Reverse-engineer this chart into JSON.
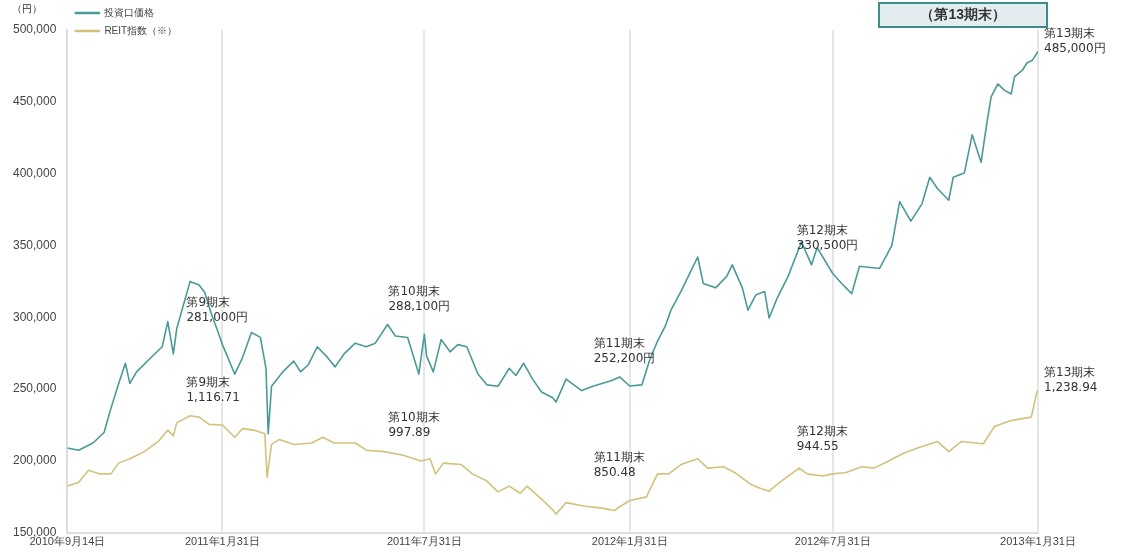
{
  "chart_data": {
    "type": "line",
    "ylabel": "（円）",
    "xlim": [
      "2010-09-14",
      "2013-01-31"
    ],
    "xticks": [
      {
        "value": "2010-09-14",
        "label": "2010年9月14日"
      },
      {
        "value": "2011-01-31",
        "label": "2011年1月31日"
      },
      {
        "value": "2011-07-31",
        "label": "2011年7月31日"
      },
      {
        "value": "2012-01-31",
        "label": "2012年1月31日"
      },
      {
        "value": "2012-07-31",
        "label": "2012年7月31日"
      },
      {
        "value": "2013-01-31",
        "label": "2013年1月31日"
      }
    ],
    "ylim": [
      150000,
      500000
    ],
    "yticks": [
      {
        "value": 150000,
        "label": "150,000"
      },
      {
        "value": 200000,
        "label": "200,000"
      },
      {
        "value": 250000,
        "label": "250,000"
      },
      {
        "value": 300000,
        "label": "300,000"
      },
      {
        "value": 350000,
        "label": "350,000"
      },
      {
        "value": 400000,
        "label": "400,000"
      },
      {
        "value": 450000,
        "label": "450,000"
      },
      {
        "value": 500000,
        "label": "500,000"
      }
    ],
    "grid": "x",
    "legend": "top left",
    "marker": "none",
    "line_style": "solid",
    "series": [
      {
        "name": "投資口価格",
        "color": "#4a9a98",
        "x": [
          "2010-09-14",
          "2010-09-24",
          "2010-10-07",
          "2010-10-17",
          "2010-10-22",
          "2010-10-30",
          "2010-11-05",
          "2010-11-09",
          "2010-11-15",
          "2010-11-28",
          "2010-12-08",
          "2010-12-13",
          "2010-12-18",
          "2010-12-21",
          "2011-01-02",
          "2011-01-10",
          "2011-01-15",
          "2011-01-21",
          "2011-01-26",
          "2011-01-31",
          "2011-02-11",
          "2011-02-18",
          "2011-02-26",
          "2011-03-06",
          "2011-03-11",
          "2011-03-13",
          "2011-03-16",
          "2011-03-26",
          "2011-04-05",
          "2011-04-11",
          "2011-04-18",
          "2011-04-26",
          "2011-05-04",
          "2011-05-12",
          "2011-05-20",
          "2011-05-30",
          "2011-06-09",
          "2011-06-17",
          "2011-06-28",
          "2011-07-05",
          "2011-07-16",
          "2011-07-26",
          "2011-07-31",
          "2011-08-02",
          "2011-08-08",
          "2011-08-15",
          "2011-08-23",
          "2011-08-30",
          "2011-09-07",
          "2011-09-17",
          "2011-09-25",
          "2011-10-05",
          "2011-10-15",
          "2011-10-21",
          "2011-10-28",
          "2011-11-05",
          "2011-11-13",
          "2011-11-23",
          "2011-11-26",
          "2011-12-05",
          "2011-12-19",
          "2011-12-29",
          "2012-01-15",
          "2012-01-22",
          "2012-01-31",
          "2012-02-11",
          "2012-02-18",
          "2012-02-25",
          "2012-03-03",
          "2012-03-08",
          "2012-03-17",
          "2012-04-01",
          "2012-04-06",
          "2012-04-17",
          "2012-04-27",
          "2012-05-02",
          "2012-05-11",
          "2012-05-16",
          "2012-05-23",
          "2012-05-31",
          "2012-06-04",
          "2012-06-11",
          "2012-06-21",
          "2012-07-03",
          "2012-07-12",
          "2012-07-17",
          "2012-07-31",
          "2012-08-08",
          "2012-08-17",
          "2012-08-24",
          "2012-09-11",
          "2012-09-22",
          "2012-09-29",
          "2012-10-09",
          "2012-10-19",
          "2012-10-26",
          "2012-11-02",
          "2012-11-12",
          "2012-11-16",
          "2012-11-26",
          "2012-12-03",
          "2012-12-11",
          "2012-12-16",
          "2012-12-20",
          "2012-12-26",
          "2013-01-01",
          "2013-01-07",
          "2013-01-10",
          "2013-01-17",
          "2013-01-21",
          "2013-01-26",
          "2013-01-31"
        ],
        "values": [
          209000,
          207500,
          212500,
          220000,
          234000,
          254000,
          268000,
          254000,
          262000,
          272000,
          279500,
          297000,
          274500,
          292000,
          325000,
          322500,
          317500,
          302500,
          292000,
          281000,
          260500,
          272000,
          289500,
          286000,
          264500,
          219000,
          252000,
          262000,
          269500,
          262000,
          267000,
          279500,
          273000,
          265500,
          274500,
          282000,
          279500,
          282000,
          295000,
          287000,
          286000,
          260500,
          288100,
          273000,
          262000,
          284500,
          276000,
          281000,
          279500,
          260500,
          253000,
          252000,
          264500,
          259500,
          268000,
          257000,
          248000,
          244000,
          241000,
          257000,
          249000,
          252000,
          256000,
          258500,
          252200,
          253000,
          270500,
          283500,
          294000,
          305000,
          318000,
          342000,
          323500,
          320500,
          328500,
          336500,
          320500,
          305000,
          315500,
          318000,
          299500,
          313000,
          328500,
          352500,
          336500,
          348500,
          330500,
          323500,
          316500,
          335500,
          334000,
          350000,
          380500,
          367000,
          379000,
          397500,
          389500,
          381500,
          397500,
          400500,
          427000,
          408000,
          434500,
          453500,
          462500,
          458000,
          455500,
          467500,
          472000,
          477000,
          479000,
          485000
        ]
      },
      {
        "name": "REIT指数（※）",
        "color": "#d2c27c",
        "x": [
          "2010-09-14",
          "2010-09-24",
          "2010-10-03",
          "2010-10-13",
          "2010-10-23",
          "2010-10-30",
          "2010-11-09",
          "2010-11-22",
          "2010-12-05",
          "2010-12-13",
          "2010-12-18",
          "2010-12-21",
          "2011-01-02",
          "2011-01-10",
          "2011-01-19",
          "2011-01-31",
          "2011-02-11",
          "2011-02-18",
          "2011-02-28",
          "2011-03-10",
          "2011-03-12",
          "2011-03-16",
          "2011-03-23",
          "2011-04-05",
          "2011-04-21",
          "2011-05-01",
          "2011-05-11",
          "2011-05-30",
          "2011-06-09",
          "2011-06-25",
          "2011-07-12",
          "2011-07-28",
          "2011-08-05",
          "2011-08-10",
          "2011-08-17",
          "2011-09-02",
          "2011-09-12",
          "2011-09-25",
          "2011-10-05",
          "2011-10-15",
          "2011-10-25",
          "2011-10-31",
          "2011-11-13",
          "2011-11-23",
          "2011-11-26",
          "2011-12-05",
          "2011-12-22",
          "2012-01-08",
          "2012-01-17",
          "2012-01-25",
          "2012-01-31",
          "2012-02-15",
          "2012-02-25",
          "2012-03-06",
          "2012-03-17",
          "2012-04-01",
          "2012-04-10",
          "2012-04-24",
          "2012-05-04",
          "2012-05-18",
          "2012-05-25",
          "2012-06-04",
          "2012-06-14",
          "2012-07-01",
          "2012-07-08",
          "2012-07-22",
          "2012-07-31",
          "2012-08-12",
          "2012-08-26",
          "2012-09-06",
          "2012-09-19",
          "2012-10-03",
          "2012-10-17",
          "2012-11-02",
          "2012-11-12",
          "2012-11-23",
          "2012-12-13",
          "2012-12-23",
          "2013-01-06",
          "2013-01-17",
          "2013-01-25",
          "2013-01-30",
          "2013-01-31"
        ],
        "values": [
          182500,
          185000,
          193500,
          191000,
          191000,
          198500,
          201500,
          206500,
          214000,
          221500,
          217500,
          226500,
          231500,
          230500,
          225500,
          225000,
          216500,
          222500,
          221500,
          219000,
          188500,
          211500,
          215000,
          211500,
          212500,
          216500,
          212500,
          212500,
          207500,
          206500,
          204000,
          200000,
          201500,
          191000,
          198500,
          197500,
          191000,
          186000,
          178500,
          182500,
          177500,
          182500,
          173500,
          166000,
          163000,
          171000,
          168500,
          167000,
          165500,
          169500,
          172500,
          175000,
          191000,
          191000,
          197500,
          201500,
          195000,
          196000,
          192000,
          184000,
          181500,
          179000,
          185500,
          195000,
          191000,
          189500,
          191000,
          192000,
          196000,
          195000,
          200000,
          205500,
          209500,
          213500,
          206500,
          213500,
          212000,
          224000,
          228000,
          229500,
          230500,
          248000,
          249000
        ]
      }
    ],
    "annotations": [
      {
        "text": "第9期末\n281,000円",
        "x": "2011-01-31",
        "y": 281000
      },
      {
        "text": "第10期末\n288,100円",
        "x": "2011-07-31",
        "y": 288100
      },
      {
        "text": "第11期末\n252,200円",
        "x": "2012-01-31",
        "y": 252200
      },
      {
        "text": "第12期末\n330,500円",
        "x": "2012-07-31",
        "y": 330500
      },
      {
        "text": "第13期末\n485,000円",
        "x": "2013-01-31",
        "y": 485000
      },
      {
        "text": "第9期末\n1,116.71",
        "x": "2011-01-31",
        "y": 225000
      },
      {
        "text": "第10期末\n997.89",
        "x": "2011-07-31",
        "y": 200500
      },
      {
        "text": "第11期末\n850.48",
        "x": "2012-01-31",
        "y": 172500
      },
      {
        "text": "第12期末\n944.55",
        "x": "2012-07-31",
        "y": 191000
      },
      {
        "text": "第13期末\n1,238.94",
        "x": "2013-01-31",
        "y": 249000
      },
      "（第13期末）"
    ]
  }
}
